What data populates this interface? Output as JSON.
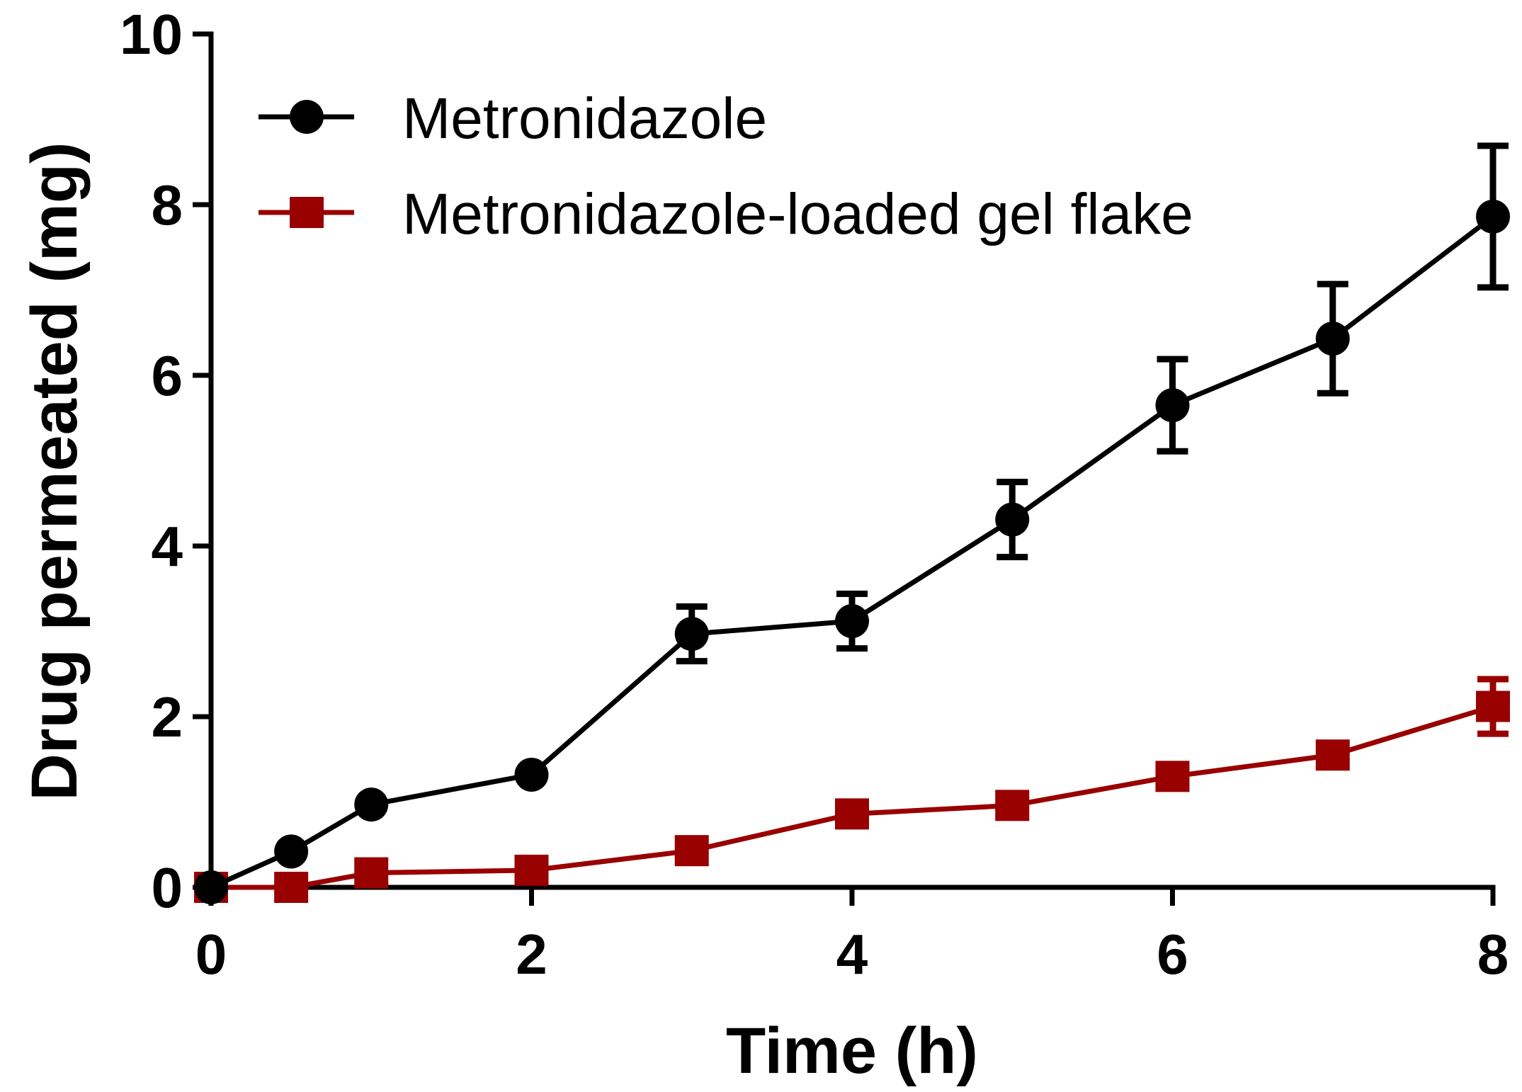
{
  "chart_data": {
    "type": "line",
    "title": "",
    "xlabel": "Time (h)",
    "ylabel": "Drug permeated (mg)",
    "xlim": [
      0,
      8
    ],
    "ylim": [
      0,
      10
    ],
    "xticks": [
      0,
      2,
      4,
      6,
      8
    ],
    "yticks": [
      0,
      2,
      4,
      6,
      8,
      10
    ],
    "grid": false,
    "legend_position": "top-left",
    "series": [
      {
        "name": "Metronidazole",
        "color": "#000000",
        "marker": "circle",
        "x": [
          0,
          0.5,
          1,
          2,
          3,
          4,
          5,
          6,
          7,
          8
        ],
        "y": [
          0,
          0.42,
          0.97,
          1.32,
          2.97,
          3.12,
          4.31,
          5.65,
          6.43,
          7.86
        ],
        "err": [
          0,
          0,
          0,
          0,
          0.32,
          0.32,
          0.44,
          0.54,
          0.64,
          0.83
        ]
      },
      {
        "name": "Metronidazole-loaded gel flake",
        "color": "#990000",
        "marker": "square",
        "x": [
          0,
          0.5,
          1,
          2,
          3,
          4,
          5,
          6,
          7,
          8
        ],
        "y": [
          0,
          0,
          0.17,
          0.2,
          0.43,
          0.86,
          0.96,
          1.3,
          1.55,
          2.12
        ],
        "err": [
          0,
          0,
          0,
          0,
          0,
          0,
          0,
          0,
          0,
          0.32
        ]
      }
    ]
  }
}
